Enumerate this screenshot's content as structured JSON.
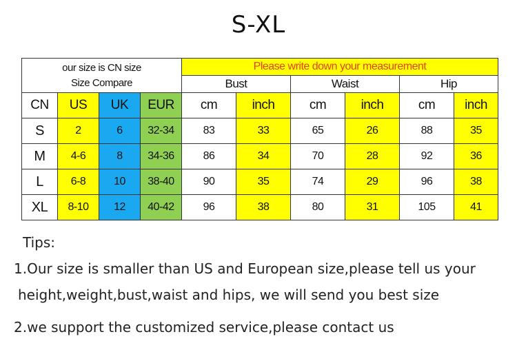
{
  "title": "S-XL",
  "colors": {
    "yellow": "#ffff00",
    "blue": "#1aa9f0",
    "green": "#8fcf52",
    "header_text": "#e8401c"
  },
  "table": {
    "compare_line1": "our size is CN size",
    "compare_line2": "Size Compare",
    "measurement_note": "Please write down your measurement",
    "groups": [
      "Bust",
      "Waist",
      "Hip"
    ],
    "subheaders": [
      "CN",
      "US",
      "UK",
      "EUR",
      "cm",
      "inch",
      "cm",
      "inch",
      "cm",
      "inch"
    ],
    "rows": [
      [
        "S",
        "2",
        "6",
        "32-34",
        "83",
        "33",
        "65",
        "26",
        "88",
        "35"
      ],
      [
        "M",
        "4-6",
        "8",
        "34-36",
        "86",
        "34",
        "70",
        "28",
        "92",
        "36"
      ],
      [
        "L",
        "6-8",
        "10",
        "38-40",
        "90",
        "35",
        "74",
        "29",
        "96",
        "38"
      ],
      [
        "XL",
        "8-10",
        "12",
        "40-42",
        "96",
        "38",
        "80",
        "31",
        "105",
        "41"
      ]
    ]
  },
  "tips": {
    "heading": "Tips:",
    "line1": "1.Our size is smaller than US and European size,please tell us your",
    "line2": "height,weight,bust,waist and hips, we will send you best size",
    "line3": "2.we support the customized service,please contact us"
  }
}
